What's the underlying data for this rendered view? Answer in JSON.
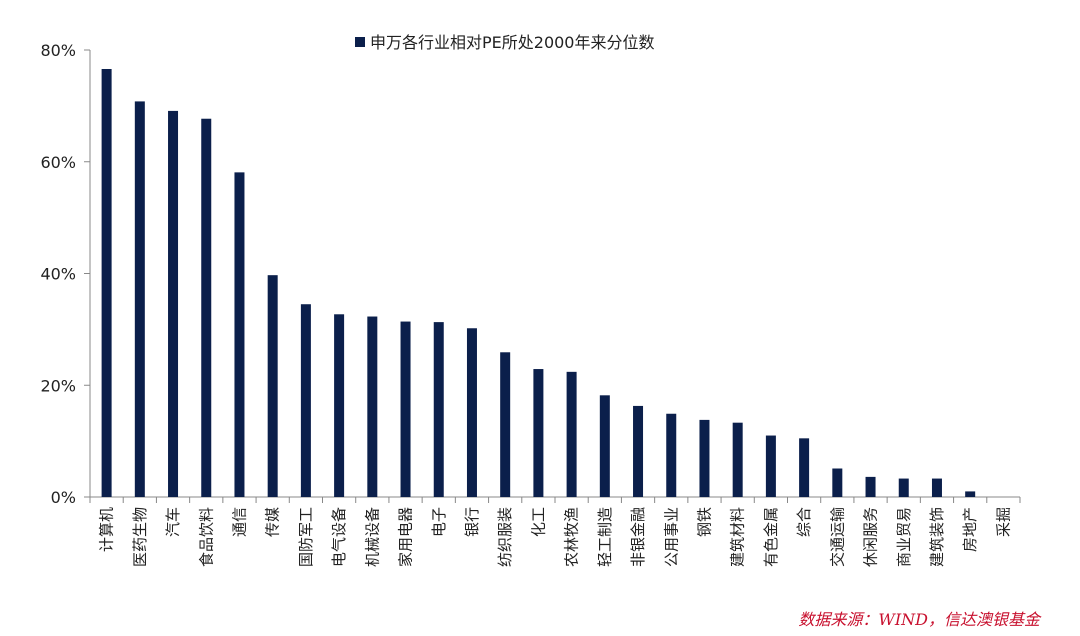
{
  "chart_data": {
    "type": "bar",
    "legend": {
      "label": "申万各行业相对PE所处2000年来分位数",
      "position": "top-center"
    },
    "bar_color": "#0b1f4b",
    "ylim": [
      0,
      80
    ],
    "yticks": [
      0,
      20,
      40,
      60,
      80
    ],
    "ytick_labels": [
      "0%",
      "20%",
      "40%",
      "60%",
      "80%"
    ],
    "y_unit": "%",
    "grid": false,
    "categories": [
      "计算机",
      "医药生物",
      "汽车",
      "食品饮料",
      "通信",
      "传媒",
      "国防军工",
      "电气设备",
      "机械设备",
      "家用电器",
      "电子",
      "银行",
      "纺织服装",
      "化工",
      "农林牧渔",
      "轻工制造",
      "非银金融",
      "公用事业",
      "钢铁",
      "建筑材料",
      "有色金属",
      "综合",
      "交通运输",
      "休闲服务",
      "商业贸易",
      "建筑装饰",
      "房地产",
      "采掘"
    ],
    "values": [
      76.6,
      70.8,
      69.1,
      67.7,
      58.1,
      39.7,
      34.5,
      32.7,
      32.3,
      31.4,
      31.3,
      30.2,
      25.9,
      22.9,
      22.4,
      18.2,
      16.3,
      14.9,
      13.8,
      13.3,
      11.0,
      10.5,
      5.1,
      3.6,
      3.3,
      3.3,
      1.0,
      0.0
    ]
  },
  "source_note": "数据来源：WIND，信达澳银基金"
}
